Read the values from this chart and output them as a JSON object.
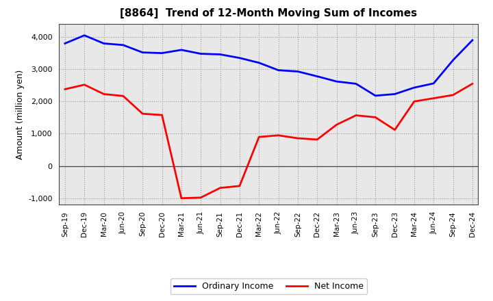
{
  "title": "[8864]  Trend of 12-Month Moving Sum of Incomes",
  "ylabel": "Amount (million yen)",
  "x_labels": [
    "Sep-19",
    "Dec-19",
    "Mar-20",
    "Jun-20",
    "Sep-20",
    "Dec-20",
    "Mar-21",
    "Jun-21",
    "Sep-21",
    "Dec-21",
    "Mar-22",
    "Jun-22",
    "Sep-22",
    "Dec-22",
    "Mar-23",
    "Jun-23",
    "Sep-23",
    "Dec-23",
    "Mar-24",
    "Jun-24",
    "Sep-24",
    "Dec-24"
  ],
  "ordinary_income": [
    3800,
    4050,
    3800,
    3750,
    3520,
    3500,
    3600,
    3480,
    3460,
    3350,
    3200,
    2970,
    2930,
    2780,
    2620,
    2550,
    2180,
    2230,
    2430,
    2560,
    3280,
    3900
  ],
  "net_income": [
    2380,
    2520,
    2230,
    2170,
    1620,
    1580,
    -1000,
    -980,
    -680,
    -620,
    900,
    950,
    860,
    820,
    1280,
    1570,
    1510,
    1120,
    2000,
    2100,
    2200,
    2550
  ],
  "ordinary_color": "#0000FF",
  "net_color": "#FF0000",
  "ylim": [
    -1200,
    4400
  ],
  "yticks": [
    -1000,
    0,
    1000,
    2000,
    3000,
    4000
  ],
  "plot_bg_color": "#E8E8E8",
  "fig_bg_color": "#FFFFFF",
  "grid_color": "#999999",
  "legend_labels": [
    "Ordinary Income",
    "Net Income"
  ]
}
